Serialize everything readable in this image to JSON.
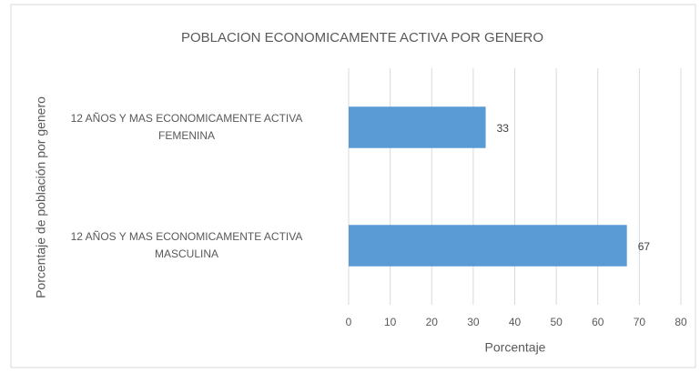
{
  "chart_data": {
    "type": "bar",
    "orientation": "horizontal",
    "title": "POBLACION ECONOMICAMENTE ACTIVA POR GENERO",
    "x_label": "Porcentaje",
    "y_label": "Porcentaje de población por genero",
    "categories": [
      "12 AÑOS Y MAS ECONOMICAMENTE ACTIVA\nFEMENINA",
      "12 AÑOS Y MAS ECONOMICAMENTE ACTIVA\nMASCULINA"
    ],
    "values": [
      33,
      67
    ],
    "color": "#5b9bd5",
    "xlim": [
      0,
      80
    ],
    "xticks": [
      0,
      10,
      20,
      30,
      40,
      50,
      60,
      70,
      80
    ],
    "grid": true
  }
}
